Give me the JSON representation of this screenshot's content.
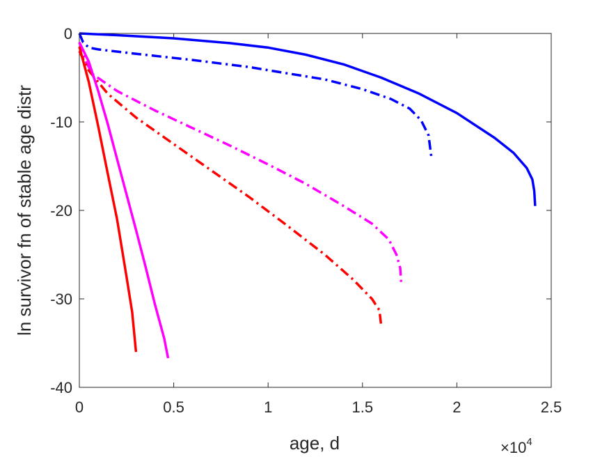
{
  "chart_data": {
    "type": "line",
    "title": "",
    "xlabel": "age, d",
    "ylabel": "ln survivor fn of stable age distr",
    "x_multiplier_label": "×10",
    "x_multiplier_exponent": "4",
    "xlim": [
      0,
      25000
    ],
    "ylim": [
      -40,
      0
    ],
    "x_ticks": [
      {
        "value": 0,
        "label": "0"
      },
      {
        "value": 5000,
        "label": "0.5"
      },
      {
        "value": 10000,
        "label": "1"
      },
      {
        "value": 15000,
        "label": "1.5"
      },
      {
        "value": 20000,
        "label": "2"
      },
      {
        "value": 25000,
        "label": "2.5"
      }
    ],
    "y_ticks": [
      {
        "value": 0,
        "label": "0"
      },
      {
        "value": -10,
        "label": "-10"
      },
      {
        "value": -20,
        "label": "-20"
      },
      {
        "value": -30,
        "label": "-30"
      },
      {
        "value": -40,
        "label": "-40"
      }
    ],
    "grid": false,
    "legend": "none",
    "series": [
      {
        "color": "#0000ff",
        "style": "solid",
        "points": [
          [
            0,
            0
          ],
          [
            2000,
            -0.2
          ],
          [
            5000,
            -0.55
          ],
          [
            8000,
            -1.1
          ],
          [
            10000,
            -1.6
          ],
          [
            12000,
            -2.4
          ],
          [
            14000,
            -3.5
          ],
          [
            16000,
            -5.0
          ],
          [
            18000,
            -6.8
          ],
          [
            20000,
            -9.0
          ],
          [
            22000,
            -11.8
          ],
          [
            23000,
            -13.5
          ],
          [
            23700,
            -15.2
          ],
          [
            24000,
            -16.5
          ],
          [
            24100,
            -17.8
          ],
          [
            24150,
            -19.5
          ]
        ]
      },
      {
        "color": "#0000ff",
        "style": "dashdot",
        "points": [
          [
            0,
            0
          ],
          [
            200,
            -1.0
          ],
          [
            500,
            -1.6
          ],
          [
            1000,
            -1.8
          ],
          [
            3000,
            -2.3
          ],
          [
            6000,
            -3.0
          ],
          [
            9000,
            -3.8
          ],
          [
            11000,
            -4.5
          ],
          [
            13000,
            -5.2
          ],
          [
            15000,
            -6.3
          ],
          [
            16500,
            -7.4
          ],
          [
            17500,
            -8.5
          ],
          [
            18100,
            -9.8
          ],
          [
            18500,
            -11.5
          ],
          [
            18650,
            -14.0
          ]
        ]
      },
      {
        "color": "#ff00ff",
        "style": "dashdot",
        "points": [
          [
            0,
            -1.0
          ],
          [
            300,
            -3.0
          ],
          [
            700,
            -4.6
          ],
          [
            2000,
            -6.5
          ],
          [
            4000,
            -8.7
          ],
          [
            6000,
            -10.7
          ],
          [
            8000,
            -12.7
          ],
          [
            10000,
            -14.8
          ],
          [
            12000,
            -17.0
          ],
          [
            14000,
            -19.5
          ],
          [
            15500,
            -21.5
          ],
          [
            16400,
            -23.3
          ],
          [
            16800,
            -25.0
          ],
          [
            17000,
            -26.5
          ],
          [
            17050,
            -28.2
          ]
        ]
      },
      {
        "color": "#ff0000",
        "style": "dashdot",
        "points": [
          [
            0,
            -2.0
          ],
          [
            500,
            -4.2
          ],
          [
            1500,
            -6.8
          ],
          [
            3000,
            -9.5
          ],
          [
            5000,
            -12.5
          ],
          [
            7000,
            -15.5
          ],
          [
            9000,
            -18.5
          ],
          [
            11000,
            -21.7
          ],
          [
            13000,
            -25.0
          ],
          [
            14500,
            -27.8
          ],
          [
            15500,
            -30.0
          ],
          [
            15900,
            -31.3
          ],
          [
            16000,
            -33.2
          ]
        ]
      },
      {
        "color": "#ff00ff",
        "style": "solid",
        "points": [
          [
            0,
            -1.0
          ],
          [
            500,
            -3.2
          ],
          [
            1000,
            -6.5
          ],
          [
            1500,
            -10.2
          ],
          [
            2000,
            -14.2
          ],
          [
            2500,
            -18.2
          ],
          [
            3000,
            -22.2
          ],
          [
            3500,
            -26.3
          ],
          [
            4000,
            -30.6
          ],
          [
            4500,
            -34.5
          ],
          [
            4700,
            -36.7
          ]
        ]
      },
      {
        "color": "#ff0000",
        "style": "solid",
        "points": [
          [
            0,
            -1.5
          ],
          [
            500,
            -5.5
          ],
          [
            1000,
            -10.5
          ],
          [
            1500,
            -15.8
          ],
          [
            2000,
            -21.0
          ],
          [
            2500,
            -27.5
          ],
          [
            2800,
            -31.5
          ],
          [
            3000,
            -36.0
          ]
        ]
      }
    ]
  }
}
